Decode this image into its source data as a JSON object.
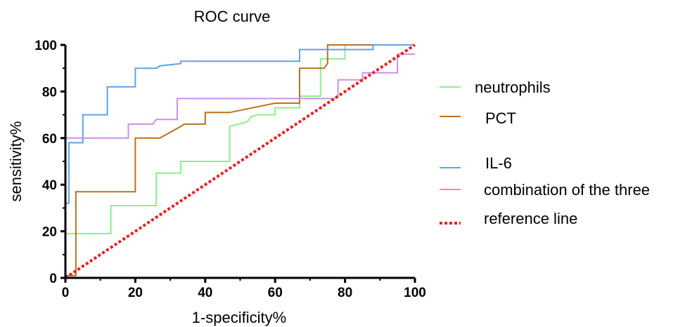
{
  "chart_data": {
    "type": "line",
    "title": "ROC curve",
    "xlabel": "1-specificity%",
    "ylabel": "sensitivity%",
    "xlim": [
      0,
      100
    ],
    "ylim": [
      0,
      100
    ],
    "x_ticks": [
      "0",
      "20",
      "40",
      "60",
      "80",
      "100"
    ],
    "y_ticks": [
      "0",
      "20",
      "40",
      "60",
      "80",
      "100"
    ],
    "grid": false,
    "legend_position": "right",
    "series": [
      {
        "name": "neutrophils",
        "color": "#8cf08c",
        "dash": "solid",
        "points": [
          [
            0,
            0
          ],
          [
            0,
            19
          ],
          [
            13,
            19
          ],
          [
            13,
            31
          ],
          [
            26,
            31
          ],
          [
            26,
            45
          ],
          [
            33,
            45
          ],
          [
            33,
            50
          ],
          [
            47,
            50
          ],
          [
            47,
            65
          ],
          [
            52,
            67
          ],
          [
            53,
            69
          ],
          [
            55,
            70
          ],
          [
            60,
            70
          ],
          [
            60,
            73
          ],
          [
            67,
            73
          ],
          [
            67,
            78
          ],
          [
            73,
            78
          ],
          [
            73,
            94
          ],
          [
            80,
            94
          ],
          [
            80,
            100
          ],
          [
            100,
            100
          ]
        ]
      },
      {
        "name": "PCT",
        "color": "#c0701c",
        "dash": "solid",
        "points": [
          [
            0,
            1
          ],
          [
            3,
            1
          ],
          [
            3,
            37
          ],
          [
            20,
            37
          ],
          [
            20,
            60
          ],
          [
            27,
            60
          ],
          [
            33,
            65
          ],
          [
            34,
            66
          ],
          [
            40,
            66
          ],
          [
            40,
            71
          ],
          [
            47,
            71
          ],
          [
            60,
            75
          ],
          [
            67,
            75
          ],
          [
            67,
            90
          ],
          [
            74,
            90
          ],
          [
            75,
            92
          ],
          [
            75,
            100
          ],
          [
            100,
            100
          ]
        ]
      },
      {
        "name": "IL-6",
        "color": "#5fa4e6",
        "dash": "solid",
        "points": [
          [
            0,
            0
          ],
          [
            0,
            32
          ],
          [
            1,
            32
          ],
          [
            1,
            58
          ],
          [
            5,
            58
          ],
          [
            5,
            70
          ],
          [
            12,
            70
          ],
          [
            12,
            82
          ],
          [
            20,
            82
          ],
          [
            20,
            90
          ],
          [
            26,
            90
          ],
          [
            27,
            91
          ],
          [
            33,
            92
          ],
          [
            33,
            93
          ],
          [
            67,
            93
          ],
          [
            67,
            98
          ],
          [
            88,
            98
          ],
          [
            88,
            100
          ],
          [
            100,
            100
          ]
        ]
      },
      {
        "name": "combination of the three",
        "color": "#cf8cf2",
        "dash": "solid",
        "points": [
          [
            0,
            30
          ],
          [
            0,
            60
          ],
          [
            18,
            60
          ],
          [
            18,
            66
          ],
          [
            25,
            66
          ],
          [
            26,
            68
          ],
          [
            32,
            68
          ],
          [
            32,
            77
          ],
          [
            77,
            77
          ],
          [
            78,
            78
          ],
          [
            78,
            85
          ],
          [
            85,
            85
          ],
          [
            85,
            88
          ],
          [
            95,
            88
          ],
          [
            95,
            96
          ],
          [
            100,
            96
          ]
        ]
      },
      {
        "name": "reference line",
        "color": "#e8211f",
        "dash": "dotted",
        "points": [
          [
            0,
            0
          ],
          [
            100,
            100
          ]
        ]
      }
    ]
  }
}
